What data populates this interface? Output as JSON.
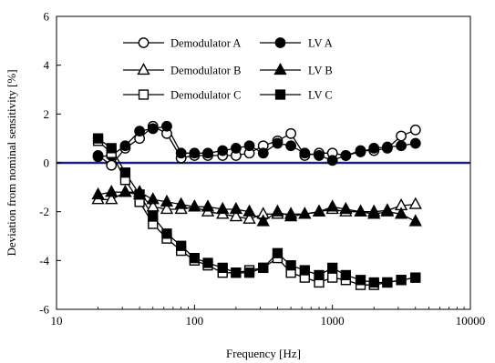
{
  "chart_data": {
    "type": "line",
    "title": "",
    "xlabel": "Frequency [Hz]",
    "ylabel": "Deviation from nominal sensitivity [%]",
    "xscale": "log",
    "xlim": [
      10,
      10000
    ],
    "ylim": [
      -6,
      6
    ],
    "x_ticks": [
      10,
      100,
      1000,
      10000
    ],
    "x_tick_labels": [
      "10",
      "100",
      "1000",
      "10000"
    ],
    "y_ticks": [
      -6,
      -4,
      -2,
      0,
      2,
      4,
      6
    ],
    "y_tick_labels": [
      "-6",
      "-4",
      "-2",
      "0",
      "2",
      "4",
      "6"
    ],
    "grid": false,
    "legend_position": "top-center",
    "zero_line_color": "#1a237e",
    "x": [
      20,
      25,
      31.5,
      40,
      50,
      63,
      80,
      100,
      125,
      160,
      200,
      250,
      315,
      400,
      500,
      630,
      800,
      1000,
      1250,
      1600,
      2000,
      2500,
      3150,
      4000
    ],
    "series": [
      {
        "name": "Demodulator A",
        "marker": "circle",
        "fill": "open",
        "values": [
          0.3,
          -0.1,
          0.6,
          1.0,
          1.5,
          1.2,
          0.2,
          0.3,
          0.3,
          0.3,
          0.3,
          0.4,
          0.7,
          0.9,
          1.2,
          0.3,
          0.4,
          0.4,
          0.3,
          0.5,
          0.5,
          0.6,
          1.1,
          1.35
        ]
      },
      {
        "name": "LV A",
        "marker": "circle",
        "fill": "filled",
        "values": [
          0.25,
          0.3,
          0.7,
          1.3,
          1.4,
          1.5,
          0.4,
          0.4,
          0.4,
          0.5,
          0.6,
          0.7,
          0.4,
          0.8,
          0.7,
          0.4,
          0.3,
          0.1,
          0.3,
          0.45,
          0.6,
          0.65,
          0.7,
          0.8
        ]
      },
      {
        "name": "Demodulator B",
        "marker": "triangle",
        "fill": "open",
        "values": [
          -1.5,
          -1.5,
          -1.2,
          -1.3,
          -1.8,
          -1.9,
          -1.9,
          -1.8,
          -2.0,
          -2.1,
          -2.2,
          -2.3,
          -2.1,
          -2.1,
          -2.1,
          -2.1,
          -2.0,
          -1.9,
          -2.0,
          -2.0,
          -2.0,
          -1.95,
          -1.75,
          -1.7
        ]
      },
      {
        "name": "LV B",
        "marker": "triangle",
        "fill": "filled",
        "values": [
          -1.3,
          -1.2,
          -1.2,
          -1.2,
          -1.5,
          -1.6,
          -1.7,
          -1.8,
          -1.8,
          -1.9,
          -1.9,
          -2.0,
          -2.4,
          -2.0,
          -2.2,
          -2.1,
          -2.0,
          -1.8,
          -1.9,
          -2.0,
          -2.1,
          -2.0,
          -2.1,
          -2.4
        ]
      },
      {
        "name": "Demodulator C",
        "marker": "square",
        "fill": "open",
        "values": [
          0.9,
          0.4,
          -0.7,
          -1.6,
          -2.5,
          -3.1,
          -3.6,
          -4.0,
          -4.2,
          -4.5,
          -4.5,
          -4.4,
          -4.3,
          -3.9,
          -4.5,
          -4.7,
          -4.9,
          -4.7,
          -4.8,
          -5.0,
          -5.0,
          -4.9,
          -4.8,
          -4.7
        ]
      },
      {
        "name": "LV C",
        "marker": "square",
        "fill": "filled",
        "values": [
          1.0,
          0.6,
          -0.4,
          -1.3,
          -2.2,
          -2.9,
          -3.4,
          -3.9,
          -4.1,
          -4.3,
          -4.5,
          -4.5,
          -4.3,
          -3.7,
          -4.2,
          -4.4,
          -4.6,
          -4.3,
          -4.6,
          -4.8,
          -4.9,
          -4.9,
          -4.8,
          -4.7
        ]
      }
    ]
  }
}
